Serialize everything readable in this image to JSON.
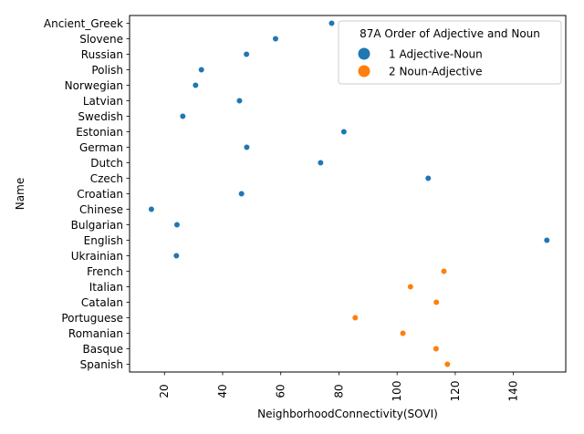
{
  "chart_data": {
    "type": "scatter",
    "xlabel": "NeighborhoodConnectivity(SOVI)",
    "ylabel": "Name",
    "xlim": [
      8,
      158
    ],
    "xticks": [
      20,
      40,
      60,
      80,
      100,
      120,
      140
    ],
    "categories": [
      "Ancient_Greek",
      "Slovene",
      "Russian",
      "Polish",
      "Norwegian",
      "Latvian",
      "Swedish",
      "Estonian",
      "German",
      "Dutch",
      "Czech",
      "Croatian",
      "Chinese",
      "Bulgarian",
      "English",
      "Ukrainian",
      "French",
      "Italian",
      "Catalan",
      "Portuguese",
      "Romanian",
      "Basque",
      "Spanish"
    ],
    "legend": {
      "title": "87A Order of Adjective and Noun",
      "location": "upper right"
    },
    "grid": false,
    "series": [
      {
        "name": "1 Adjective-Noun",
        "color": "#1f77b4",
        "points": [
          {
            "name": "Ancient_Greek",
            "x": 77.5
          },
          {
            "name": "Slovene",
            "x": 58.2
          },
          {
            "name": "Russian",
            "x": 48.2
          },
          {
            "name": "Polish",
            "x": 32.7
          },
          {
            "name": "Norwegian",
            "x": 30.7
          },
          {
            "name": "Latvian",
            "x": 45.8
          },
          {
            "name": "Swedish",
            "x": 26.3
          },
          {
            "name": "Estonian",
            "x": 81.7
          },
          {
            "name": "German",
            "x": 48.3
          },
          {
            "name": "Dutch",
            "x": 73.7
          },
          {
            "name": "Czech",
            "x": 110.7
          },
          {
            "name": "Croatian",
            "x": 46.5
          },
          {
            "name": "Chinese",
            "x": 15.5
          },
          {
            "name": "Bulgarian",
            "x": 24.3
          },
          {
            "name": "English",
            "x": 151.5
          },
          {
            "name": "Ukrainian",
            "x": 24.1
          }
        ]
      },
      {
        "name": "2 Noun-Adjective",
        "color": "#ff7f0e",
        "points": [
          {
            "name": "French",
            "x": 116.1
          },
          {
            "name": "Italian",
            "x": 104.6
          },
          {
            "name": "Catalan",
            "x": 113.5
          },
          {
            "name": "Portuguese",
            "x": 85.6
          },
          {
            "name": "Romanian",
            "x": 102.0
          },
          {
            "name": "Basque",
            "x": 113.4
          },
          {
            "name": "Spanish",
            "x": 117.3
          }
        ]
      }
    ]
  }
}
